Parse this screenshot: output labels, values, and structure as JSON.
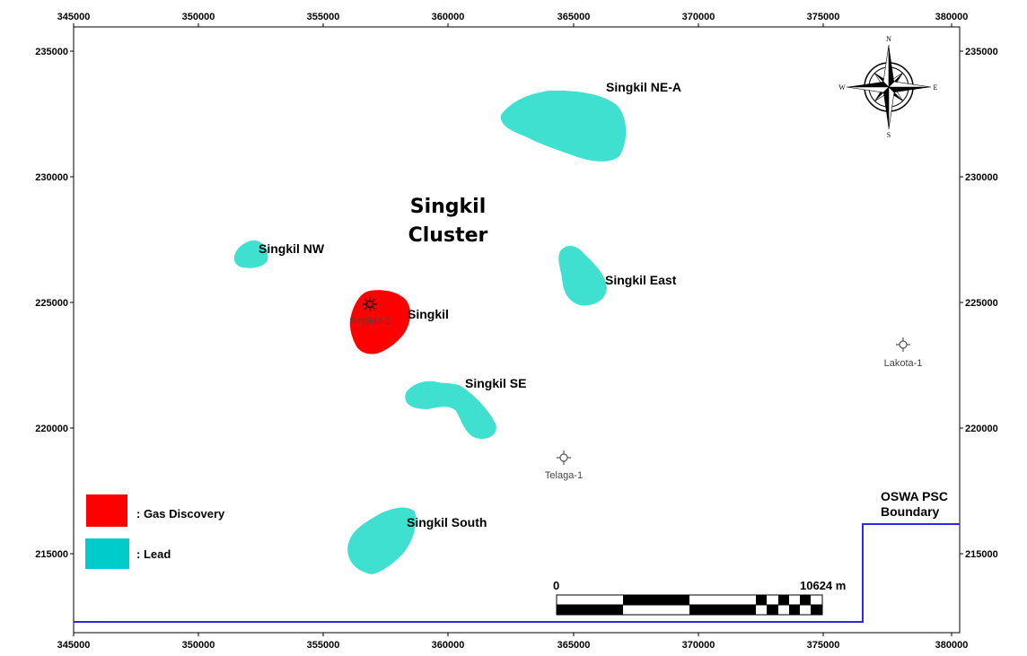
{
  "map": {
    "cluster_title_line1": "Singkil",
    "cluster_title_line2": "Cluster",
    "x_ticks": [
      "345000",
      "350000",
      "355000",
      "360000",
      "365000",
      "370000",
      "375000",
      "380000"
    ],
    "y_ticks": [
      "235000",
      "230000",
      "225000",
      "220000",
      "215000"
    ],
    "features": {
      "ne_a": "Singkil NE-A",
      "nw": "Singkil NW",
      "east": "Singkil East",
      "singkil": "Singkil",
      "se": "Singkil SE",
      "south": "Singkil South"
    },
    "wells": {
      "singkel": "Singkel-1",
      "lakota": "Lakota-1",
      "telaga": "Telaga-1"
    },
    "boundary_label_line1": "OSWA PSC",
    "boundary_label_line2": "Boundary",
    "colors": {
      "lead": "#40e0d0",
      "gas": "#ff0000",
      "boundary": "#2a2ae6"
    }
  },
  "legend": {
    "gas": ": Gas Discovery",
    "lead": ": Lead",
    "gas_color": "#ff0000",
    "lead_color": "#00cccc"
  },
  "compass": {
    "n": "N",
    "s": "S",
    "e": "E",
    "w": "W"
  },
  "scale_bar": {
    "start": "0",
    "end": "10624 m"
  }
}
